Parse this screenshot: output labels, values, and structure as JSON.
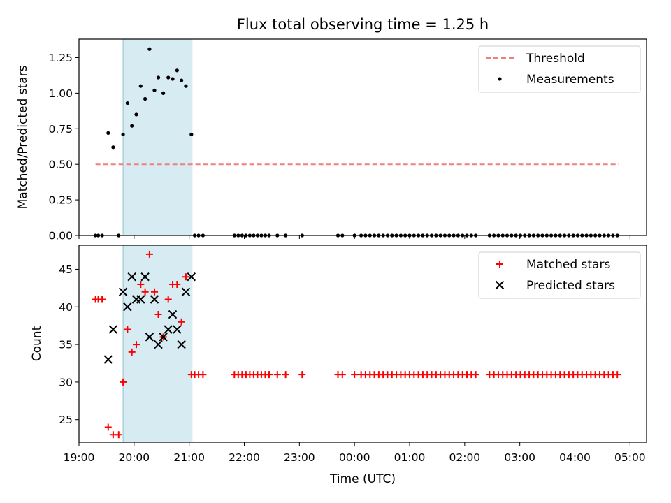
{
  "title": "Flux total observing time = 1.25 h",
  "shade_interval": [
    19.8,
    21.05
  ],
  "time_axis": {
    "label": "Time (UTC)",
    "xlim": [
      19.0,
      29.3
    ],
    "ticks": [
      19,
      20,
      21,
      22,
      23,
      24,
      25,
      26,
      27,
      28,
      29
    ],
    "tick_labels": [
      "19:00",
      "20:00",
      "21:00",
      "22:00",
      "23:00",
      "00:00",
      "01:00",
      "02:00",
      "03:00",
      "04:00",
      "05:00"
    ]
  },
  "chart_data": [
    {
      "type": "scatter",
      "panel": "ratio",
      "ylabel": "Matched/Predicted stars",
      "ylim": [
        0,
        1.38
      ],
      "yticks": [
        0,
        0.25,
        0.5,
        0.75,
        1.0,
        1.25
      ],
      "ytick_labels": [
        "0.00",
        "0.25",
        "0.50",
        "0.75",
        "1.00",
        "1.25"
      ],
      "threshold": {
        "name": "Threshold",
        "y": 0.5,
        "x_range": [
          19.3,
          28.8
        ],
        "color": "#f08080"
      },
      "legend": [
        "Threshold",
        "Measurements"
      ],
      "series": [
        {
          "name": "Measurements",
          "color": "#000000",
          "x": [
            19.3,
            19.35,
            19.42,
            19.53,
            19.62,
            19.72,
            19.8,
            19.88,
            19.96,
            20.04,
            20.12,
            20.2,
            20.28,
            20.37,
            20.44,
            20.53,
            20.62,
            20.7,
            20.78,
            20.86,
            20.94,
            21.04,
            21.1,
            21.17,
            21.25,
            21.82,
            21.89,
            21.96,
            22.03,
            22.1,
            22.17,
            22.24,
            22.31,
            22.38,
            22.45,
            22.6,
            22.75,
            23.05,
            23.7,
            23.78,
            24.0,
            24.12,
            24.2,
            24.28,
            24.36,
            24.44,
            24.52,
            24.6,
            24.68,
            24.76,
            24.84,
            24.92,
            25.0,
            25.08,
            25.16,
            25.24,
            25.32,
            25.4,
            25.48,
            25.56,
            25.64,
            25.72,
            25.8,
            25.88,
            25.96,
            26.04,
            26.12,
            26.2,
            26.45,
            26.53,
            26.61,
            26.69,
            26.77,
            26.85,
            26.93,
            27.01,
            27.09,
            27.17,
            27.25,
            27.33,
            27.41,
            27.49,
            27.57,
            27.65,
            27.73,
            27.81,
            27.89,
            27.97,
            28.05,
            28.13,
            28.21,
            28.29,
            28.37,
            28.45,
            28.53,
            28.61,
            28.69,
            28.77
          ],
          "y": [
            0,
            0,
            0,
            0.72,
            0.62,
            0,
            0.71,
            0.93,
            0.77,
            0.85,
            1.05,
            0.96,
            1.31,
            1.02,
            1.11,
            1.0,
            1.11,
            1.1,
            1.16,
            1.09,
            1.05,
            0.71,
            0,
            0,
            0,
            0,
            0,
            0,
            0,
            0,
            0,
            0,
            0,
            0,
            0,
            0,
            0,
            0,
            0,
            0,
            0,
            0,
            0,
            0,
            0,
            0,
            0,
            0,
            0,
            0,
            0,
            0,
            0,
            0,
            0,
            0,
            0,
            0,
            0,
            0,
            0,
            0,
            0,
            0,
            0,
            0,
            0,
            0,
            0,
            0,
            0,
            0,
            0,
            0,
            0,
            0,
            0,
            0,
            0,
            0,
            0,
            0,
            0,
            0,
            0,
            0,
            0,
            0,
            0,
            0,
            0,
            0,
            0,
            0,
            0,
            0,
            0,
            0
          ]
        }
      ]
    },
    {
      "type": "scatter",
      "panel": "count",
      "ylabel": "Count",
      "ylim": [
        22,
        48.2
      ],
      "yticks": [
        25,
        30,
        35,
        40,
        45
      ],
      "ytick_labels": [
        "25",
        "30",
        "35",
        "40",
        "45"
      ],
      "legend": [
        "Matched stars",
        "Predicted stars"
      ],
      "series": [
        {
          "name": "Matched stars",
          "marker": "plus",
          "color": "#ff0000",
          "x": [
            19.3,
            19.35,
            19.42,
            19.53,
            19.62,
            19.72,
            19.8,
            19.88,
            19.96,
            20.04,
            20.12,
            20.2,
            20.28,
            20.37,
            20.44,
            20.53,
            20.62,
            20.7,
            20.78,
            20.86,
            20.94,
            21.04,
            21.1,
            21.17,
            21.25,
            21.82,
            21.89,
            21.96,
            22.03,
            22.1,
            22.17,
            22.24,
            22.31,
            22.38,
            22.45,
            22.6,
            22.75,
            23.05,
            23.7,
            23.78,
            24.0,
            24.12,
            24.2,
            24.28,
            24.36,
            24.44,
            24.52,
            24.6,
            24.68,
            24.76,
            24.84,
            24.92,
            25.0,
            25.08,
            25.16,
            25.24,
            25.32,
            25.4,
            25.48,
            25.56,
            25.64,
            25.72,
            25.8,
            25.88,
            25.96,
            26.04,
            26.12,
            26.2,
            26.45,
            26.53,
            26.61,
            26.69,
            26.77,
            26.85,
            26.93,
            27.01,
            27.09,
            27.17,
            27.25,
            27.33,
            27.41,
            27.49,
            27.57,
            27.65,
            27.73,
            27.81,
            27.89,
            27.97,
            28.05,
            28.13,
            28.21,
            28.29,
            28.37,
            28.45,
            28.53,
            28.61,
            28.69,
            28.77
          ],
          "y": [
            41,
            41,
            41,
            24,
            23,
            23,
            30,
            37,
            34,
            35,
            43,
            42,
            47,
            42,
            39,
            36,
            41,
            43,
            43,
            38,
            44,
            31,
            31,
            31,
            31,
            31,
            31,
            31,
            31,
            31,
            31,
            31,
            31,
            31,
            31,
            31,
            31,
            31,
            31,
            31,
            31,
            31,
            31,
            31,
            31,
            31,
            31,
            31,
            31,
            31,
            31,
            31,
            31,
            31,
            31,
            31,
            31,
            31,
            31,
            31,
            31,
            31,
            31,
            31,
            31,
            31,
            31,
            31,
            31,
            31,
            31,
            31,
            31,
            31,
            31,
            31,
            31,
            31,
            31,
            31,
            31,
            31,
            31,
            31,
            31,
            31,
            31,
            31,
            31,
            31,
            31,
            31,
            31,
            31,
            31,
            31,
            31,
            31
          ]
        },
        {
          "name": "Predicted stars",
          "marker": "x",
          "color": "#000000",
          "x": [
            19.53,
            19.62,
            19.8,
            19.88,
            19.96,
            20.04,
            20.12,
            20.2,
            20.28,
            20.37,
            20.44,
            20.53,
            20.62,
            20.7,
            20.78,
            20.86,
            20.94,
            21.04
          ],
          "y": [
            33,
            37,
            42,
            40,
            44,
            41,
            41,
            44,
            36,
            41,
            35,
            36,
            37,
            39,
            37,
            35,
            42,
            44
          ]
        }
      ]
    }
  ]
}
